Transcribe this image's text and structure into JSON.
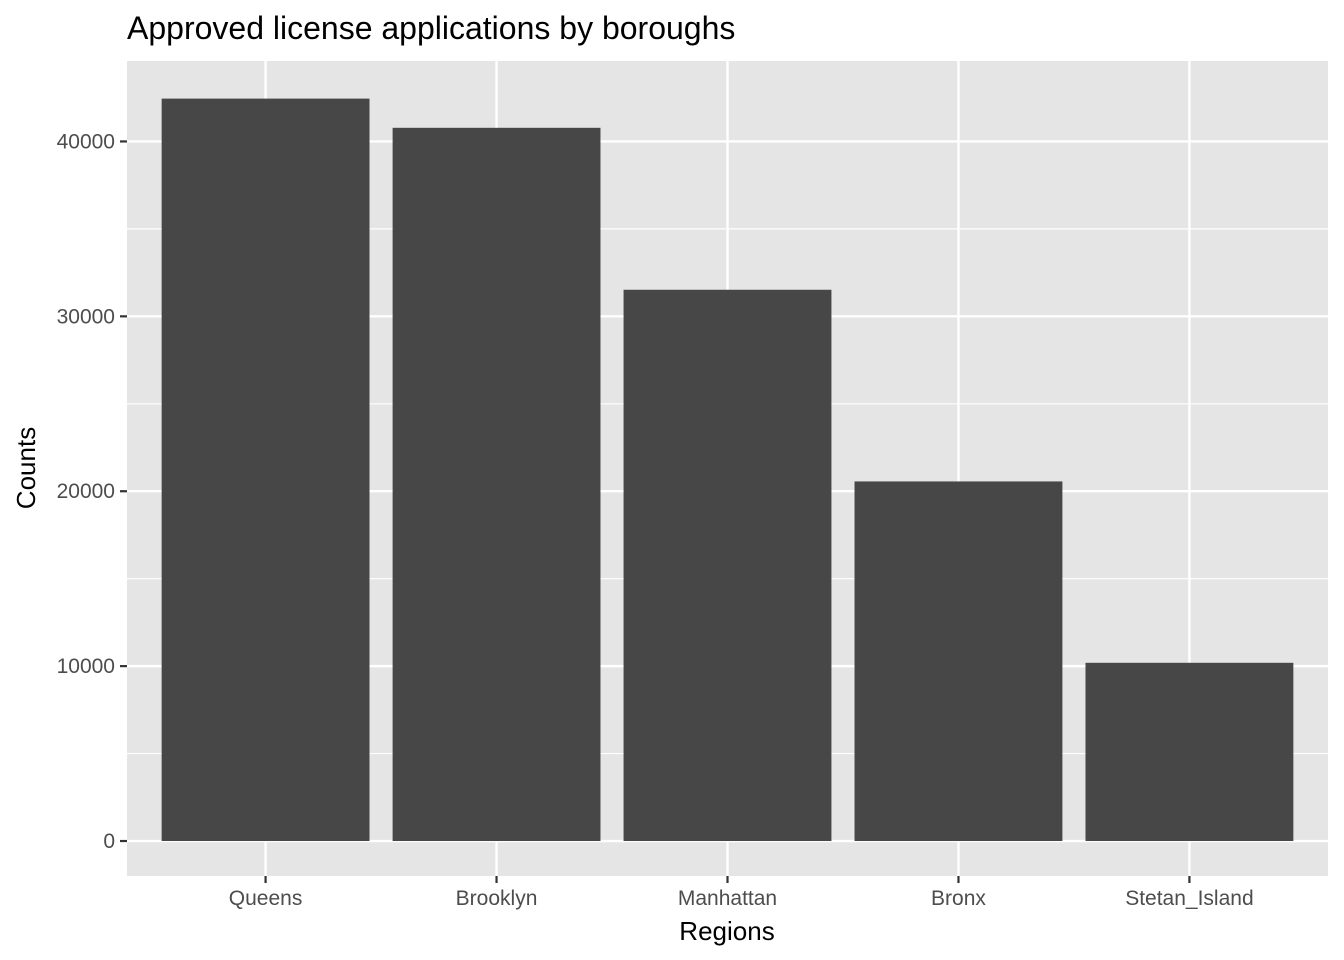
{
  "chart_data": {
    "type": "bar",
    "title": "Approved license applications by boroughs",
    "xlabel": "Regions",
    "ylabel": "Counts",
    "categories": [
      "Queens",
      "Brooklyn",
      "Manhattan",
      "Bronx",
      "Stetan_Island"
    ],
    "values": [
      42450,
      40780,
      31520,
      20560,
      10190
    ],
    "ylim": [
      -2000,
      44600
    ],
    "yticks": [
      0,
      10000,
      20000,
      30000,
      40000
    ],
    "ytick_labels": [
      "0",
      "10000",
      "20000",
      "30000",
      "40000"
    ],
    "yminor": [
      5000,
      15000,
      25000,
      35000
    ],
    "grid": true,
    "legend": "none",
    "colors": {
      "bar": "#474747",
      "panel": "#e5e5e5",
      "grid": "#ffffff",
      "tick": "#333333"
    }
  }
}
